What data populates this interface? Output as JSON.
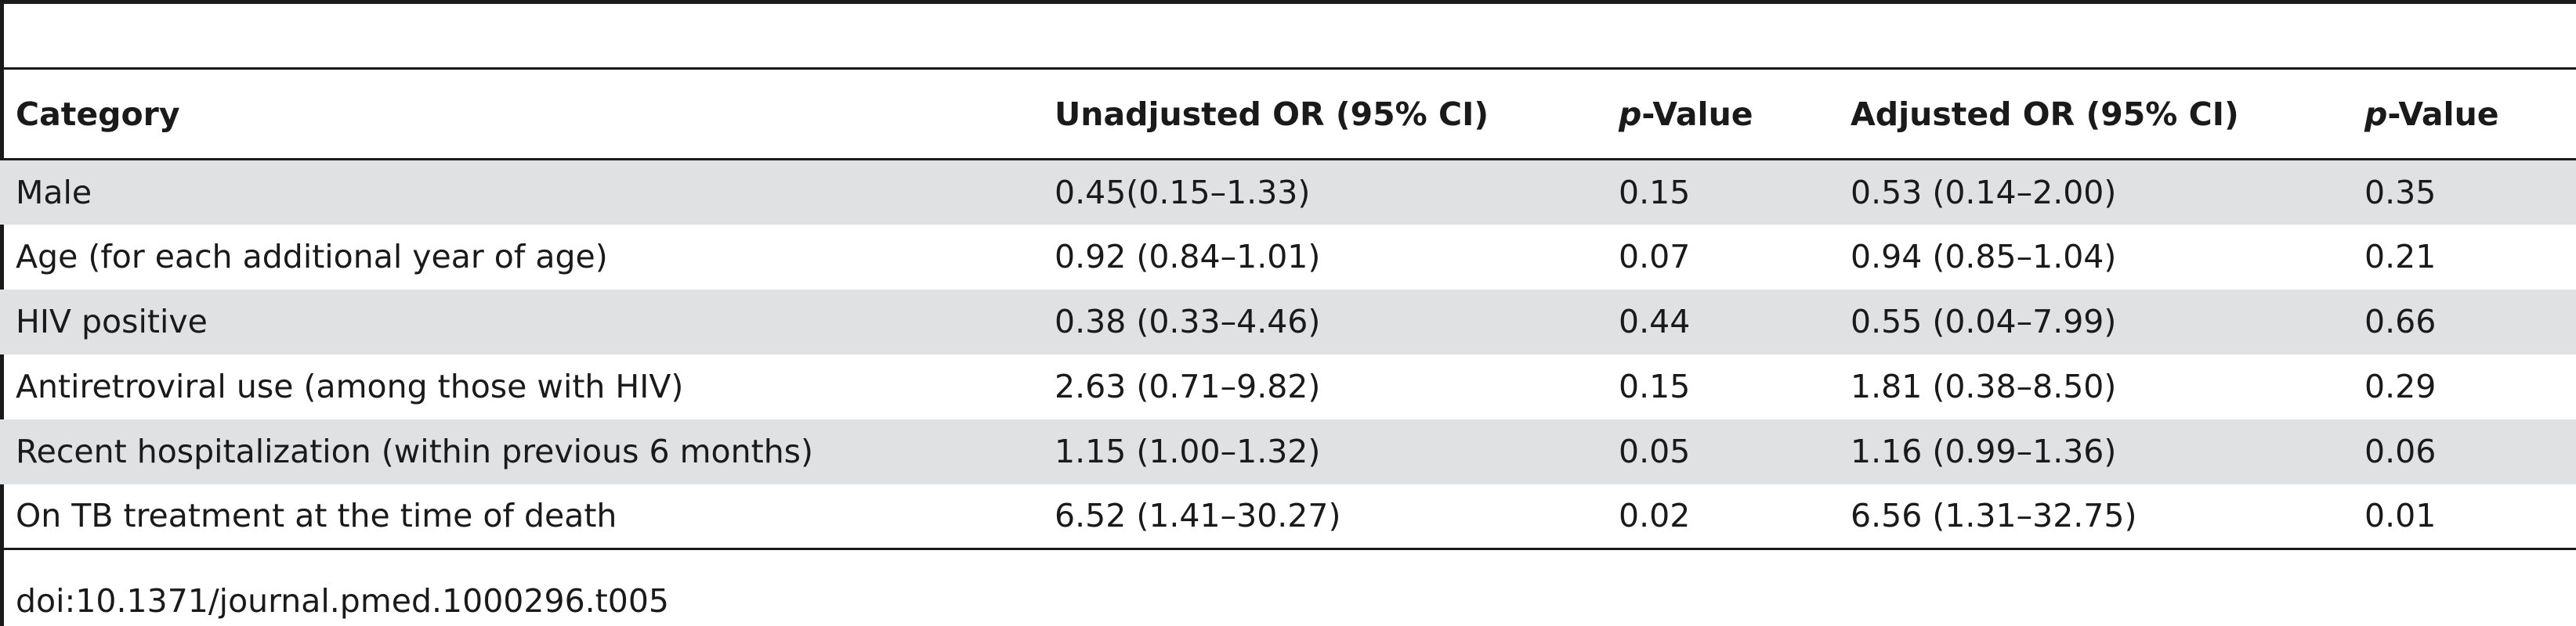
{
  "table": {
    "headers": {
      "category": "Category",
      "unadjusted_or": "Unadjusted OR (95% CI)",
      "p_value_1_prefix": "p",
      "p_value_1_suffix": "-Value",
      "adjusted_or": "Adjusted OR (95% CI)",
      "p_value_2_prefix": "p",
      "p_value_2_suffix": "-Value"
    },
    "rows": [
      {
        "category": "Male",
        "unadjusted_or": "0.45(0.15–1.33)",
        "p1": "0.15",
        "adjusted_or": "0.53 (0.14–2.00)",
        "p2": "0.35"
      },
      {
        "category": "Age (for each additional year of age)",
        "unadjusted_or": "0.92 (0.84–1.01)",
        "p1": "0.07",
        "adjusted_or": "0.94 (0.85–1.04)",
        "p2": "0.21"
      },
      {
        "category": "HIV positive",
        "unadjusted_or": "0.38 (0.33–4.46)",
        "p1": "0.44",
        "adjusted_or": "0.55 (0.04–7.99)",
        "p2": "0.66"
      },
      {
        "category": "Antiretroviral use (among those with HIV)",
        "unadjusted_or": "2.63 (0.71–9.82)",
        "p1": "0.15",
        "adjusted_or": "1.81 (0.38–8.50)",
        "p2": "0.29"
      },
      {
        "category": "Recent hospitalization (within previous 6 months)",
        "unadjusted_or": "1.15 (1.00–1.32)",
        "p1": "0.05",
        "adjusted_or": "1.16 (0.99–1.36)",
        "p2": "0.06"
      },
      {
        "category": "On TB treatment at the time of death",
        "unadjusted_or": "6.52 (1.41–30.27)",
        "p1": "0.02",
        "adjusted_or": "6.56 (1.31–32.75)",
        "p2": "0.01"
      }
    ]
  },
  "caption": "doi:10.1371/journal.pmed.1000296.t005"
}
